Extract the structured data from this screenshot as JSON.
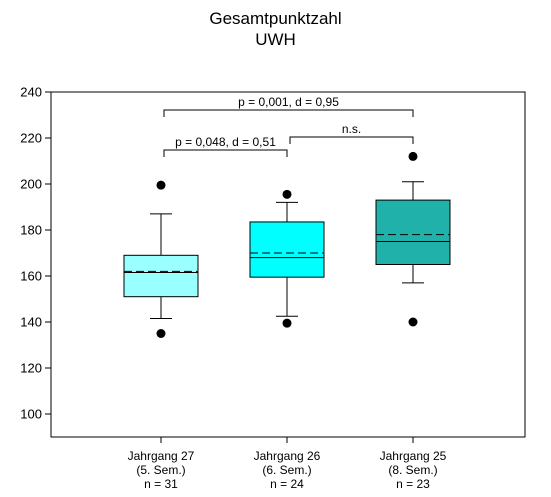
{
  "chart_data": {
    "type": "box",
    "title": "Gesamtpunktzahl",
    "subtitle": "UWH",
    "xlabel": "",
    "ylabel": "",
    "ylim": [
      90,
      240
    ],
    "yticks": [
      100,
      120,
      140,
      160,
      180,
      200,
      220,
      240
    ],
    "grid": false,
    "categories": [
      {
        "line1": "Jahrgang 27",
        "line2": "(5. Sem.)",
        "line3": "n = 31",
        "color": "#99FFFF",
        "whisker_low": 141.5,
        "q1": 151,
        "median": 161.5,
        "mean": 162,
        "q3": 169,
        "whisker_high": 187,
        "outliers": [
          199.5,
          135
        ]
      },
      {
        "line1": "Jahrgang 26",
        "line2": "(6. Sem.)",
        "line3": "n = 24",
        "color": "#00FFFF",
        "whisker_low": 142.5,
        "q1": 159.5,
        "median": 168,
        "mean": 170,
        "q3": 183.5,
        "whisker_high": 192,
        "outliers": [
          195.5,
          139.5
        ]
      },
      {
        "line1": "Jahrgang 25",
        "line2": "(8. Sem.)",
        "line3": "n = 23",
        "color": "#20B2AA",
        "whisker_low": 157,
        "q1": 165,
        "median": 175,
        "mean": 178,
        "q3": 193,
        "whisker_high": 201,
        "outliers": [
          212,
          140
        ]
      }
    ],
    "annotations": [
      {
        "from": 0,
        "to": 2,
        "label": "p = 0,001, d = 0,95"
      },
      {
        "from": 0,
        "to": 1,
        "label": "p = 0,048, d = 0,51"
      },
      {
        "from": 1,
        "to": 2,
        "label": "n.s."
      }
    ]
  }
}
